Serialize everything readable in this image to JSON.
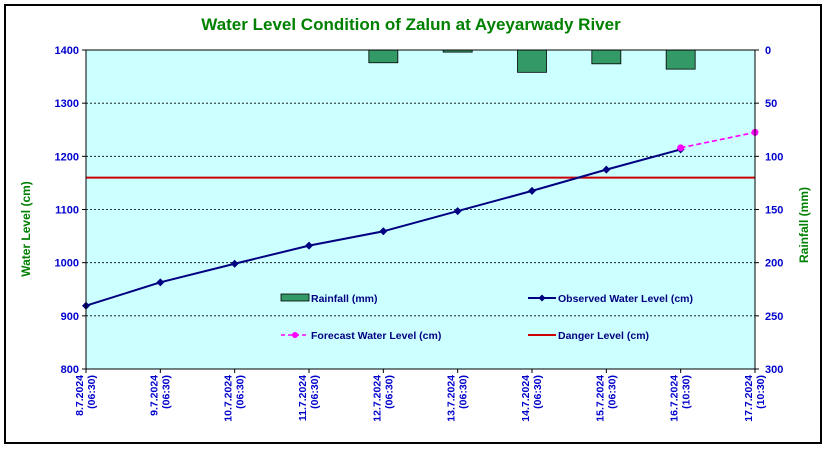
{
  "chart_data": {
    "type": "line",
    "title": "Water Level Condition of Zalun at Ayeyarwady River",
    "ylabel": "Water Level (cm)",
    "y2label": "Rainfall (mm)",
    "ylim": [
      800,
      1400
    ],
    "y2lim": [
      0,
      300
    ],
    "y2_inverted": true,
    "yticks": [
      "800",
      "900",
      "1000",
      "1100",
      "1200",
      "1300",
      "1400"
    ],
    "y2ticks": [
      "0",
      "50",
      "100",
      "150",
      "200",
      "250",
      "300"
    ],
    "categories": [
      {
        "date": "8.7.2024",
        "time": "(06:30)"
      },
      {
        "date": "9.7.2024",
        "time": "(06:30)"
      },
      {
        "date": "10.7.2024",
        "time": "(06:30)"
      },
      {
        "date": "11.7.2024",
        "time": "(06:30)"
      },
      {
        "date": "12.7.2024",
        "time": "(06:30)"
      },
      {
        "date": "13.7.2024",
        "time": "(06:30)"
      },
      {
        "date": "14.7.2024",
        "time": "(06:30)"
      },
      {
        "date": "15.7.2024",
        "time": "(06:30)"
      },
      {
        "date": "16.7.2024",
        "time": "(10:30)"
      },
      {
        "date": "17.7.2024",
        "time": "(10:30)"
      }
    ],
    "series": [
      {
        "name": "Rainfall (mm)",
        "kind": "bar",
        "axis": "right",
        "color": "#339966",
        "values": [
          null,
          null,
          null,
          null,
          12,
          2,
          21,
          13,
          18,
          null
        ]
      },
      {
        "name": "Observed Water Level (cm)",
        "kind": "line",
        "axis": "left",
        "color": "#000080",
        "values": [
          919,
          963,
          998,
          1032,
          1059,
          1097,
          1135,
          1175,
          1213,
          null
        ]
      },
      {
        "name": "Forecast Water Level (cm)",
        "kind": "dashed-line",
        "axis": "left",
        "color": "#ff00ff",
        "values": [
          null,
          null,
          null,
          null,
          null,
          null,
          null,
          null,
          1216,
          1245
        ]
      },
      {
        "name": "Danger Level (cm)",
        "kind": "hline",
        "axis": "left",
        "color": "#cc0000",
        "value": 1160
      }
    ],
    "plot_background": "#ccffff",
    "grid": true,
    "legend": "inside-lower"
  }
}
